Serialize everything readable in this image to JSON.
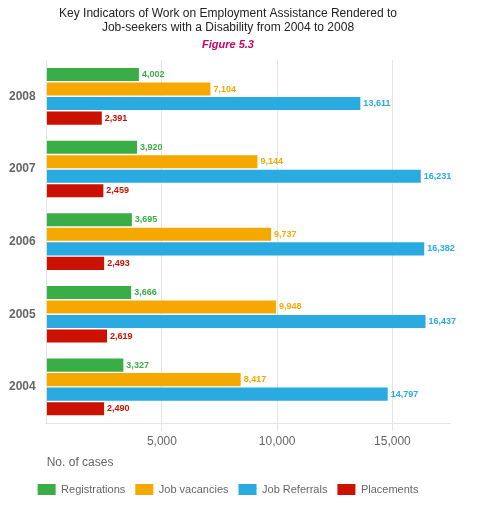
{
  "chart_data": {
    "type": "bar",
    "orientation": "horizontal",
    "title": "Key Indicators of Work on Employment Assistance Rendered to\nJob-seekers with a Disability from 2004 to 2008",
    "subtitle": "Figure 5.3",
    "categories": [
      "2008",
      "2007",
      "2006",
      "2005",
      "2004"
    ],
    "series": [
      {
        "name": "Registrations",
        "color": "#3aad47",
        "values": [
          4002,
          3920,
          3695,
          3666,
          3327
        ],
        "value_labels": [
          "4,002",
          "3,920",
          "3,695",
          "3,666",
          "3,327"
        ]
      },
      {
        "name": "Job vacancies",
        "color": "#f5a800",
        "values": [
          7104,
          9144,
          9737,
          9948,
          8417
        ],
        "value_labels": [
          "7,104",
          "9,144",
          "9,737",
          "9,948",
          "8,417"
        ]
      },
      {
        "name": "Job Referrals",
        "color": "#29abe2",
        "values": [
          13611,
          16231,
          16382,
          16437,
          14797
        ],
        "value_labels": [
          "13,611",
          "16,231",
          "16,382",
          "16,437",
          "14,797"
        ]
      },
      {
        "name": "Placements",
        "color": "#cc1100",
        "values": [
          2391,
          2459,
          2493,
          2619,
          2490
        ],
        "value_labels": [
          "2,391",
          "2,459",
          "2,493",
          "2,619",
          "2,490"
        ]
      }
    ],
    "xlabel": "No. of cases",
    "xlim": [
      0,
      17500
    ],
    "xticks": [
      {
        "value": 5000,
        "label": "5,000"
      },
      {
        "value": 10000,
        "label": "10,000"
      },
      {
        "value": 15000,
        "label": "15,000"
      }
    ],
    "grid": true,
    "legend": "bottom",
    "data_labels": true
  }
}
